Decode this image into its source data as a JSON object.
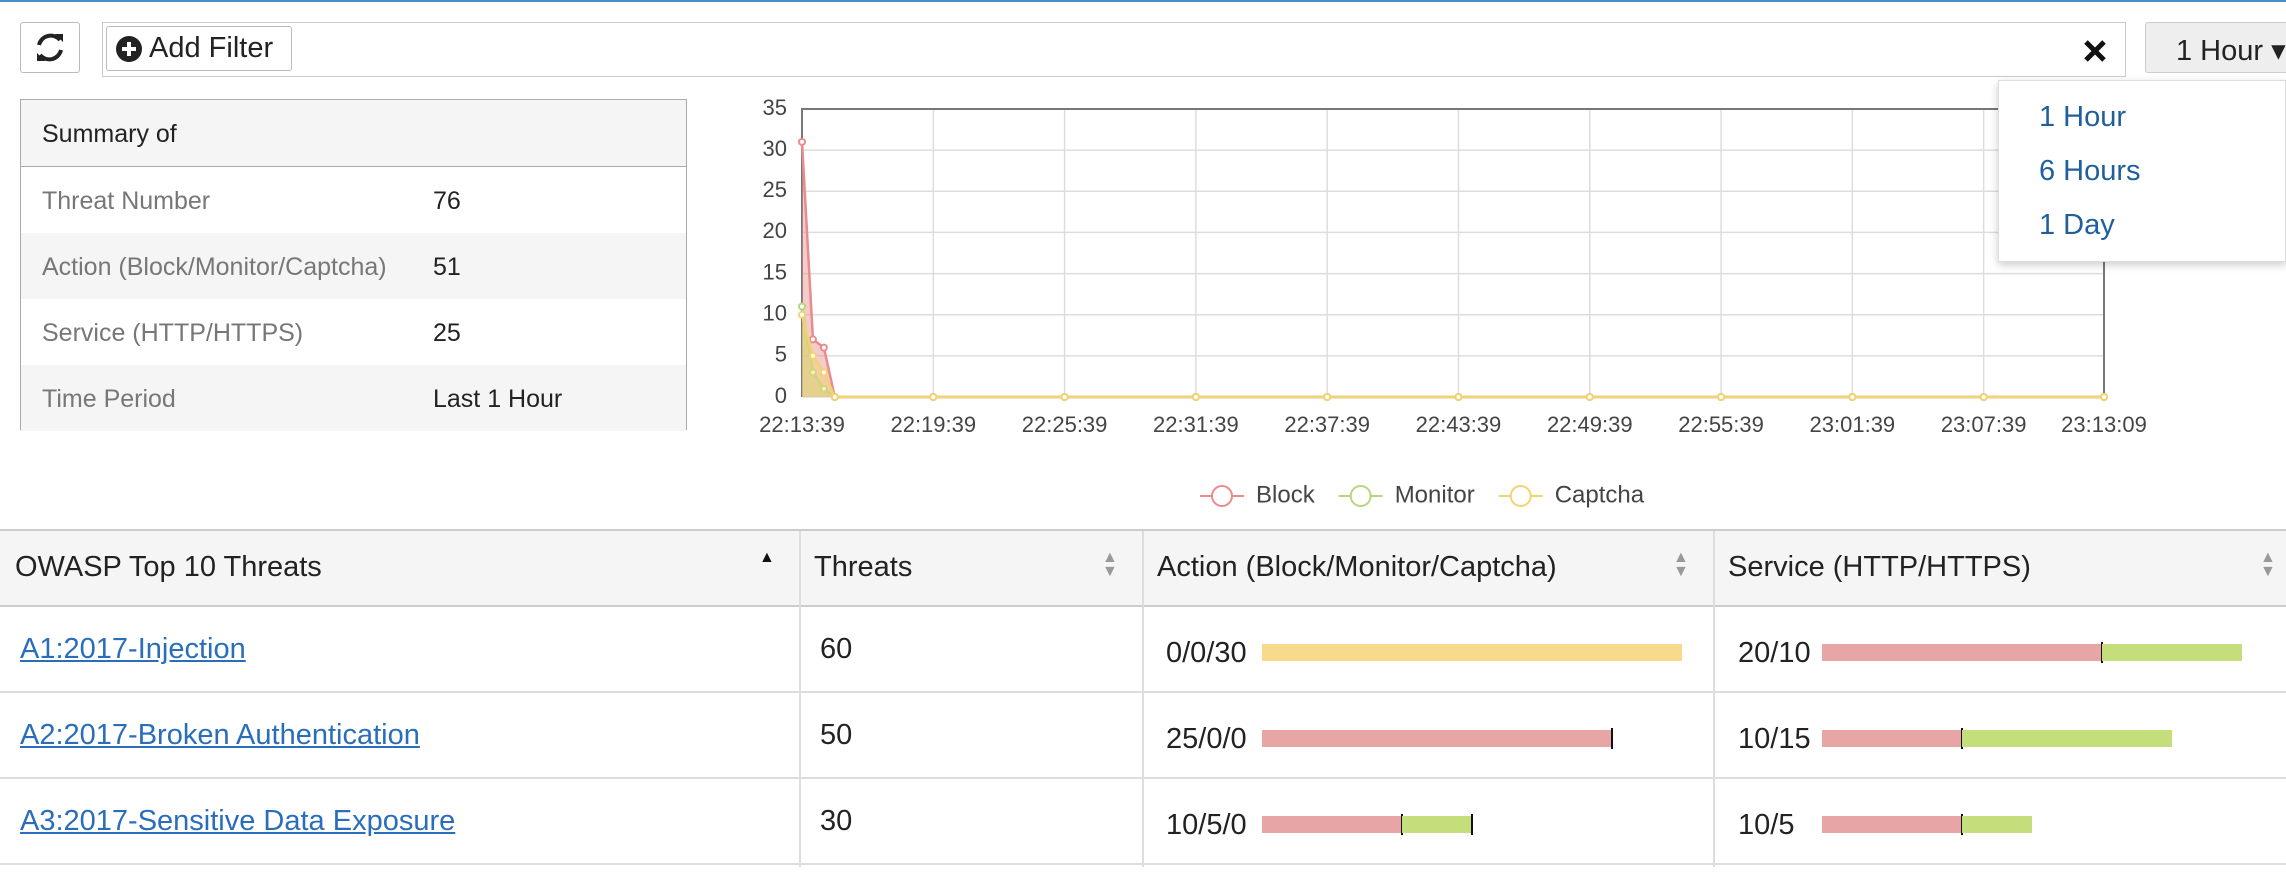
{
  "toolbar": {
    "add_filter": "Add Filter",
    "time_range": "1 Hour"
  },
  "time_menu": [
    "1 Hour",
    "6 Hours",
    "1 Day"
  ],
  "summary": {
    "title": "Summary of",
    "rows": [
      [
        "Threat Number",
        76
      ],
      [
        "Action (Block/Monitor/Captcha)",
        51
      ],
      [
        "Service (HTTP/HTTPS)",
        25
      ],
      [
        "Time Period",
        "Last 1 Hour"
      ]
    ]
  },
  "chart_data": {
    "type": "area",
    "x": [
      "22:13:39",
      "22:14:09",
      "22:14:39",
      "22:15:09",
      "22:19:39",
      "22:25:39",
      "22:31:39",
      "22:37:39",
      "22:43:39",
      "22:49:39",
      "22:55:39",
      "23:01:39",
      "23:07:39",
      "23:13:09"
    ],
    "series": [
      {
        "name": "Block",
        "color": "#e88c8c",
        "values": [
          31,
          7,
          6,
          0,
          0,
          0,
          0,
          0,
          0,
          0,
          0,
          0,
          0,
          0
        ]
      },
      {
        "name": "Monitor",
        "color": "#b5d67a",
        "values": [
          11,
          3,
          1,
          0,
          0,
          0,
          0,
          0,
          0,
          0,
          0,
          0,
          0,
          0
        ]
      },
      {
        "name": "Captcha",
        "color": "#f3d274",
        "values": [
          10,
          5,
          3,
          0,
          0,
          0,
          0,
          0,
          0,
          0,
          0,
          0,
          0,
          0
        ]
      }
    ],
    "xlim": [
      "22:13:39",
      "23:13:09"
    ],
    "xticks": [
      "22:13:39",
      "22:19:39",
      "22:25:39",
      "22:31:39",
      "22:37:39",
      "22:43:39",
      "22:49:39",
      "22:55:39",
      "23:01:39",
      "23:07:39",
      "23:13:09"
    ],
    "ylim": [
      0,
      35
    ],
    "yticks": [
      0,
      5,
      10,
      15,
      20,
      25,
      30,
      35
    ],
    "grid": true,
    "legend": "bottom"
  },
  "threats_table": {
    "columns": [
      "OWASP Top 10 Threats",
      "Threats",
      "Action (Block/Monitor/Captcha)",
      "Service (HTTP/HTTPS)"
    ],
    "action_colors": [
      "#e8a5a5",
      "#c3de7a",
      "#f7da8c"
    ],
    "service_colors": [
      "#e8a5a5",
      "#c3de7a"
    ],
    "rows": [
      {
        "name": "A1:2017-Injection",
        "threats": 60,
        "action": {
          "label": "0/0/30",
          "values": [
            0,
            0,
            30
          ]
        },
        "service": {
          "label": "20/10",
          "values": [
            20,
            10
          ]
        }
      },
      {
        "name": "A2:2017-Broken Authentication",
        "threats": 50,
        "action": {
          "label": "25/0/0",
          "values": [
            25,
            0,
            0
          ]
        },
        "service": {
          "label": "10/15",
          "values": [
            10,
            15
          ]
        }
      },
      {
        "name": "A3:2017-Sensitive Data Exposure",
        "threats": 30,
        "action": {
          "label": "10/5/0",
          "values": [
            10,
            5,
            0
          ]
        },
        "service": {
          "label": "10/5",
          "values": [
            10,
            5
          ]
        }
      }
    ]
  }
}
